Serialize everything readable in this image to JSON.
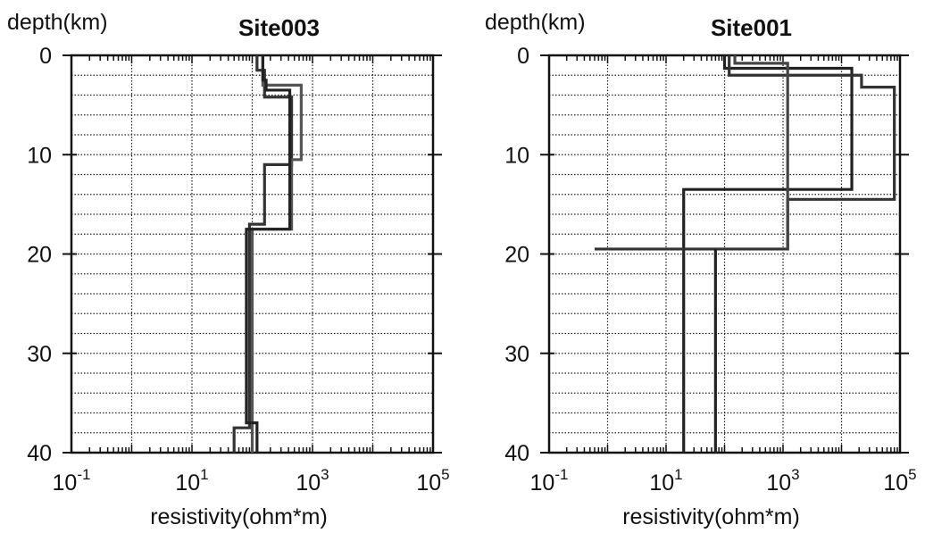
{
  "chart_data": [
    {
      "type": "line",
      "title": "Site003",
      "ylabel": "depth(km)",
      "xlabel": "resistivity(ohm*m)",
      "xscale": "log",
      "xlim": [
        0.1,
        100000
      ],
      "ylim": [
        0,
        40
      ],
      "y_inverted": true,
      "grid": true,
      "y_ticks": [
        "0",
        "10",
        "20",
        "30",
        "40"
      ],
      "x_ticks": [
        {
          "base": "10",
          "exp": "-1"
        },
        {
          "base": "10",
          "exp": "1"
        },
        {
          "base": "10",
          "exp": "3"
        },
        {
          "base": "10",
          "exp": "5"
        }
      ],
      "series": [
        {
          "step_profile": [
            [
              0,
              120
            ],
            [
              1.5,
              160
            ],
            [
              4.2,
              450
            ],
            [
              11,
              160
            ],
            [
              17,
              90
            ],
            [
              37.5,
              50
            ],
            [
              40,
              50
            ]
          ],
          "color": "#333333"
        },
        {
          "step_profile": [
            [
              0,
              150
            ],
            [
              3,
              650
            ],
            [
              10.5,
              450
            ],
            [
              17.5,
              100
            ],
            [
              40,
              100
            ]
          ],
          "color": "#555555"
        },
        {
          "step_profile": [
            [
              0,
              150
            ],
            [
              2.5,
              170
            ],
            [
              3.5,
              420
            ],
            [
              17.5,
              80
            ],
            [
              37,
              120
            ],
            [
              40,
              120
            ]
          ],
          "color": "#222222"
        }
      ]
    },
    {
      "type": "line",
      "title": "Site001",
      "ylabel": "depth(km)",
      "xlabel": "resistivity(ohm*m)",
      "xscale": "log",
      "xlim": [
        0.1,
        100000
      ],
      "ylim": [
        0,
        40
      ],
      "y_inverted": true,
      "grid": true,
      "y_ticks": [
        "0",
        "10",
        "20",
        "30",
        "40"
      ],
      "x_ticks": [
        {
          "base": "10",
          "exp": "-1"
        },
        {
          "base": "10",
          "exp": "1"
        },
        {
          "base": "10",
          "exp": "3"
        },
        {
          "base": "10",
          "exp": "5"
        }
      ],
      "series": [
        {
          "step_profile": [
            [
              0,
              100
            ],
            [
              1.3,
              15000
            ],
            [
              13.5,
              20
            ],
            [
              40,
              20
            ]
          ],
          "color": "#222222"
        },
        {
          "step_profile": [
            [
              0,
              120
            ],
            [
              2,
              22000
            ],
            [
              3.2,
              80000
            ],
            [
              14.5,
              1200
            ],
            [
              19.5,
              0.6
            ]
          ],
          "color": "#333333"
        },
        {
          "step_profile": [
            [
              19.5,
              70
            ],
            [
              40,
              70
            ]
          ],
          "color": "#222222"
        },
        {
          "step_profile": [
            [
              0,
              150
            ],
            [
              0.8,
              1200
            ],
            [
              19.5,
              1200
            ]
          ],
          "color": "#444444"
        }
      ]
    }
  ]
}
